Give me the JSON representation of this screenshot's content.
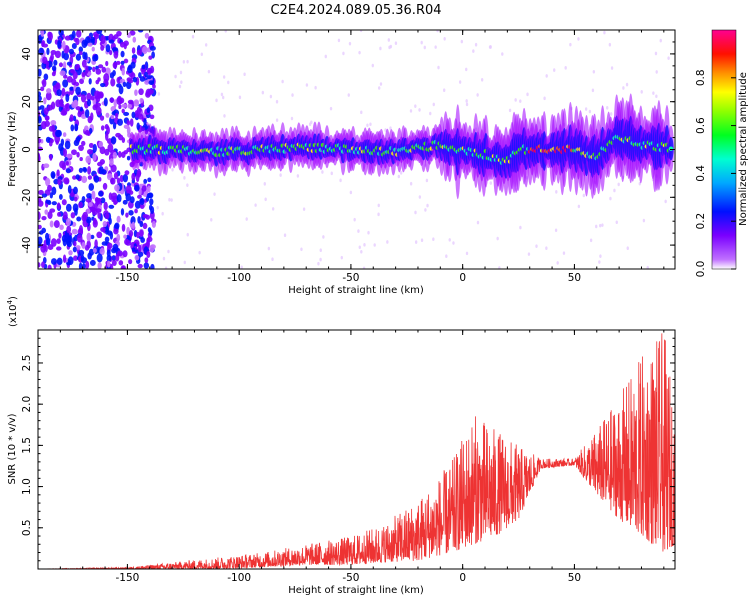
{
  "chart_data": [
    {
      "type": "heatmap",
      "title": "C2E4.2024.089.05.36.R04",
      "xlabel": "Height of straight line (km)",
      "ylabel": "Frequency (Hz)",
      "xlim": [
        -190,
        95
      ],
      "ylim": [
        -50,
        50
      ],
      "xticks": [
        -150,
        -100,
        -50,
        0,
        50
      ],
      "yticks": [
        -40,
        -20,
        0,
        20,
        40
      ],
      "colorbar": {
        "label": "Normalized spectral amplitude",
        "range": [
          0,
          1
        ],
        "ticks": [
          "0.0",
          "0.2",
          "0.4",
          "0.6",
          "0.8"
        ],
        "colors": [
          "#ffffff",
          "#a000ff",
          "#0000ff",
          "#00c8ff",
          "#00ff00",
          "#ffff00",
          "#ff8000",
          "#ff0000",
          "#ff00a0"
        ]
      },
      "ridge": [
        {
          "x": -148,
          "y": 0
        },
        {
          "x": -130,
          "y": 0
        },
        {
          "x": -110,
          "y": -1
        },
        {
          "x": -90,
          "y": 0
        },
        {
          "x": -70,
          "y": 1
        },
        {
          "x": -50,
          "y": 0
        },
        {
          "x": -30,
          "y": -1
        },
        {
          "x": -10,
          "y": 2
        },
        {
          "x": 0,
          "y": 0
        },
        {
          "x": 10,
          "y": -2
        },
        {
          "x": 20,
          "y": -5
        },
        {
          "x": 25,
          "y": 0
        },
        {
          "x": 35,
          "y": 0
        },
        {
          "x": 50,
          "y": 0
        },
        {
          "x": 60,
          "y": -3
        },
        {
          "x": 70,
          "y": 5
        },
        {
          "x": 80,
          "y": 2
        },
        {
          "x": 90,
          "y": 1
        }
      ],
      "grid": false
    },
    {
      "type": "line",
      "xlabel": "Height of straight line (km)",
      "ylabel": "SNR (10 * v/v)",
      "y_multiplier_label": "(x10",
      "y_multiplier_exp": "4",
      "xlim": [
        -190,
        95
      ],
      "ylim": [
        0,
        2.9
      ],
      "xticks": [
        -150,
        -100,
        -50,
        0,
        50
      ],
      "yticks": [
        "0.5",
        "1.0",
        "1.5",
        "2.0",
        "2.5"
      ],
      "color": "#ee3333",
      "grid": false,
      "envelope": [
        {
          "x": -190,
          "low": 0.0,
          "high": 0.0
        },
        {
          "x": -150,
          "low": 0.0,
          "high": 0.02
        },
        {
          "x": -130,
          "low": 0.0,
          "high": 0.08
        },
        {
          "x": -110,
          "low": 0.0,
          "high": 0.14
        },
        {
          "x": -90,
          "low": 0.02,
          "high": 0.2
        },
        {
          "x": -70,
          "low": 0.05,
          "high": 0.3
        },
        {
          "x": -50,
          "low": 0.05,
          "high": 0.4
        },
        {
          "x": -35,
          "low": 0.08,
          "high": 0.55
        },
        {
          "x": -20,
          "low": 0.1,
          "high": 0.85
        },
        {
          "x": -5,
          "low": 0.2,
          "high": 1.3
        },
        {
          "x": 5,
          "low": 0.3,
          "high": 1.9
        },
        {
          "x": 15,
          "low": 0.4,
          "high": 1.7
        },
        {
          "x": 25,
          "low": 0.6,
          "high": 1.5
        },
        {
          "x": 35,
          "low": 1.22,
          "high": 1.34
        },
        {
          "x": 50,
          "low": 1.26,
          "high": 1.34
        },
        {
          "x": 60,
          "low": 0.9,
          "high": 1.7
        },
        {
          "x": 70,
          "low": 0.6,
          "high": 2.1
        },
        {
          "x": 80,
          "low": 0.4,
          "high": 2.6
        },
        {
          "x": 90,
          "low": 0.2,
          "high": 2.9
        },
        {
          "x": 95,
          "low": 0.3,
          "high": 2.0
        }
      ]
    }
  ]
}
